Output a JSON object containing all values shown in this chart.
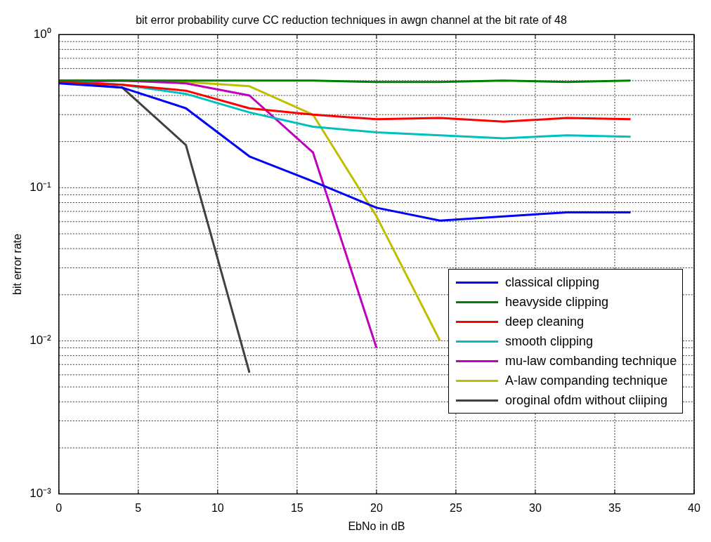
{
  "chart_data": {
    "type": "line",
    "title": "bit error probability curve CC reduction techniques in awgn channel at the bit rate of 48",
    "xlabel": "EbNo in dB",
    "ylabel": "bit error rate",
    "x": [
      0,
      4,
      8,
      12,
      16,
      20,
      24,
      28,
      32,
      36
    ],
    "series": [
      {
        "name": "classical clipping",
        "color": "#0000ff",
        "values": [
          0.48,
          0.45,
          0.33,
          0.16,
          0.11,
          0.074,
          0.061,
          0.065,
          0.069,
          0.069
        ]
      },
      {
        "name": "heavyside clipping",
        "color": "#008000",
        "values": [
          0.5,
          0.5,
          0.5,
          0.5,
          0.5,
          0.49,
          0.49,
          0.5,
          0.49,
          0.5
        ]
      },
      {
        "name": "deep cleaning",
        "color": "#ff0000",
        "values": [
          0.49,
          0.47,
          0.43,
          0.33,
          0.3,
          0.28,
          0.285,
          0.27,
          0.285,
          0.28
        ]
      },
      {
        "name": "smooth clipping",
        "color": "#00bfbf",
        "values": [
          0.5,
          0.47,
          0.41,
          0.31,
          0.25,
          0.23,
          0.22,
          0.21,
          0.22,
          0.215
        ]
      },
      {
        "name": "mu-law combanding technique",
        "color": "#bf00bf",
        "values": [
          0.49,
          0.5,
          0.48,
          0.4,
          0.17,
          0.009,
          null,
          null,
          null,
          null
        ]
      },
      {
        "name": "A-law companding technique",
        "color": "#bfbf00",
        "values": [
          0.5,
          0.5,
          0.49,
          0.46,
          0.3,
          0.065,
          0.01,
          null,
          null,
          null
        ]
      },
      {
        "name": "oroginal ofdm without cliiping",
        "color": "#404040",
        "values": [
          0.49,
          0.45,
          0.19,
          0.0062,
          null,
          null,
          null,
          null,
          null,
          null
        ]
      }
    ],
    "log": "y",
    "xlim": [
      0,
      40
    ],
    "xticks": [
      0,
      5,
      10,
      15,
      20,
      25,
      30,
      35,
      40
    ],
    "ylim": [
      0.001,
      1
    ],
    "yticks": [
      {
        "value": 0.001,
        "label": "10⁻³"
      },
      {
        "value": 0.01,
        "label": "10⁻²"
      },
      {
        "value": 0.1,
        "label": "10⁻¹"
      },
      {
        "value": 1,
        "label": "10⁰"
      }
    ],
    "grid": true,
    "legend": "bottom right",
    "line_style": "solid",
    "marker": "none"
  }
}
